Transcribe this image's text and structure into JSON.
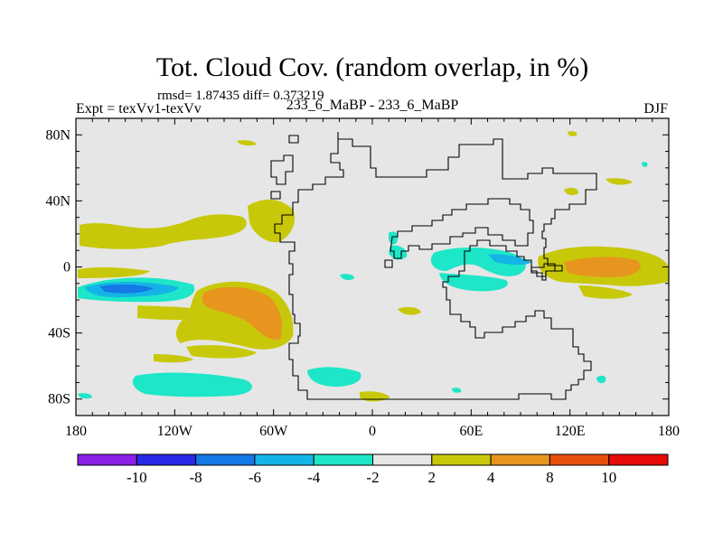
{
  "title": "Tot. Cloud Cov. (random overlap, in %)",
  "stats": "rmsd= 1.87435  diff= 0.373219",
  "expt": "Expt = texVv1-texVv",
  "case": "233_6_MaBP - 233_6_MaBP",
  "season": "DJF",
  "map": {
    "lon_range": [
      -180,
      180
    ],
    "lat_range": [
      -90,
      90
    ],
    "x_ticks": [
      {
        "value": -180,
        "label": "180"
      },
      {
        "value": -120,
        "label": "120W"
      },
      {
        "value": -60,
        "label": "60W"
      },
      {
        "value": 0,
        "label": "0"
      },
      {
        "value": 60,
        "label": "60E"
      },
      {
        "value": 120,
        "label": "120E"
      },
      {
        "value": 180,
        "label": "180"
      }
    ],
    "y_ticks": [
      {
        "value": 80,
        "label": "80N"
      },
      {
        "value": 40,
        "label": "40N"
      },
      {
        "value": 0,
        "label": "0"
      },
      {
        "value": -40,
        "label": "40S"
      },
      {
        "value": -80,
        "label": "80S"
      }
    ],
    "background_color": "#e6e6e6"
  },
  "colorbar": {
    "colors": [
      "#8c1ee6",
      "#2828e6",
      "#1478e6",
      "#14b4e6",
      "#1ee6c8",
      "#e6e6e6",
      "#c8c80a",
      "#e6961e",
      "#e6500a",
      "#e60a0a"
    ],
    "labels": [
      "-10",
      "-8",
      "-6",
      "-4",
      "-2",
      "2",
      "4",
      "8",
      "10"
    ]
  }
}
